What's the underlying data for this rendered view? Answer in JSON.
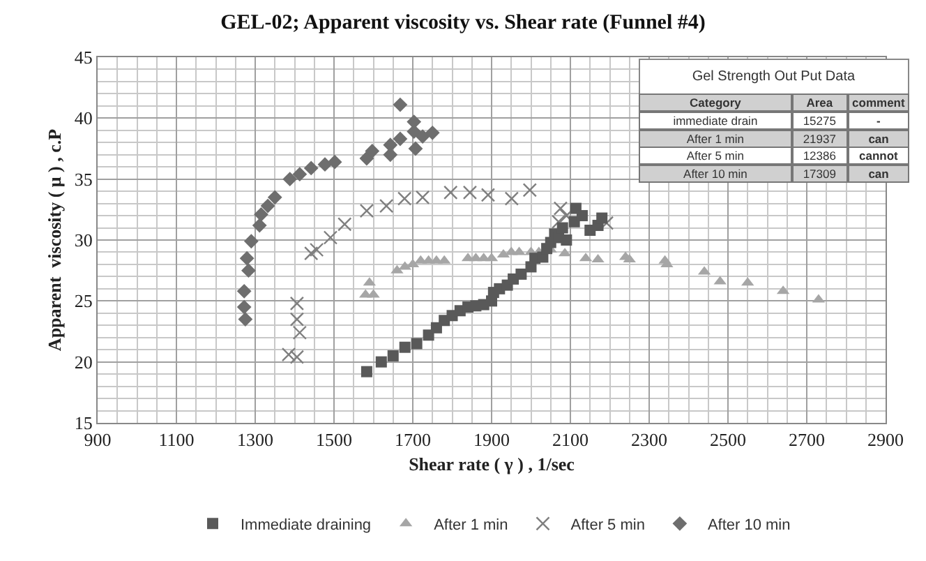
{
  "chart_data": {
    "type": "scatter",
    "title": "GEL-02; Apparent viscosity vs. Shear rate (Funnel #4)",
    "xlabel": "Shear rate ( γ ) , 1/sec",
    "ylabel": "Apparent  viscosity ( μ ) , c.P",
    "xlim": [
      900,
      2900
    ],
    "xticks": [
      900,
      1100,
      1300,
      1500,
      1700,
      1900,
      2100,
      2300,
      2500,
      2700,
      2900
    ],
    "ylim": [
      15,
      45
    ],
    "yticks": [
      15,
      20,
      25,
      30,
      35,
      40,
      45
    ],
    "grid": true,
    "legend": "bottom",
    "annotations": [
      "Gel Strength Out Put Data",
      "Category",
      "Area",
      "comment",
      "immediate drain",
      "15275",
      "-",
      "After 1 min",
      "21937",
      "can",
      "After 5 min",
      "12386",
      "cannot",
      "After 10 min",
      "17309",
      "can"
    ],
    "series": [
      {
        "name": "Immediate draining",
        "color": "#595959",
        "marker": "square",
        "x": [
          1583,
          1620,
          1650,
          1680,
          1710,
          1740,
          1760,
          1780,
          1800,
          1820,
          1840,
          1860,
          1880,
          1900,
          1905,
          1920,
          1940,
          1955,
          1975,
          2000,
          2010,
          2030,
          2040,
          2050,
          2060,
          2070,
          2080,
          2090,
          2110,
          2114,
          2130,
          2150,
          2170,
          2180
        ],
        "values": [
          19.2,
          20,
          20.5,
          21.2,
          21.5,
          22.2,
          22.8,
          23.4,
          23.8,
          24.2,
          24.5,
          24.6,
          24.7,
          25,
          25.7,
          26,
          26.3,
          26.8,
          27.2,
          27.8,
          28.5,
          28.6,
          29.3,
          29.8,
          30.5,
          30.2,
          31,
          30,
          31.5,
          32.6,
          32,
          30.8,
          31.2,
          31.8
        ]
      },
      {
        "name": "After 1 min",
        "color": "#a6a6a6",
        "marker": "triangle",
        "x": [
          1580,
          1590,
          1600,
          1660,
          1680,
          1700,
          1720,
          1740,
          1760,
          1780,
          1840,
          1860,
          1880,
          1900,
          1930,
          1950,
          1970,
          2000,
          2020,
          2050,
          2086,
          2139,
          2170,
          2240,
          2250,
          2340,
          2345,
          2440,
          2480,
          2550,
          2640,
          2730
        ],
        "values": [
          25.5,
          26.5,
          25.5,
          27.5,
          27.8,
          28,
          28.3,
          28.3,
          28.3,
          28.3,
          28.5,
          28.5,
          28.5,
          28.5,
          28.8,
          29,
          29,
          29,
          29,
          29.2,
          28.9,
          28.5,
          28.4,
          28.6,
          28.4,
          28.3,
          28,
          27.4,
          26.6,
          26.5,
          25.8,
          25.1
        ]
      },
      {
        "name": "After 5 min",
        "color": "#7f7f7f",
        "marker": "cross",
        "x": [
          1385,
          1406,
          1406,
          1406,
          1413,
          1442,
          1456,
          1491,
          1527,
          1583,
          1633,
          1679,
          1725,
          1796,
          1845,
          1891,
          1951,
          1997,
          2070,
          2075,
          2090,
          2192
        ],
        "values": [
          20.6,
          20.4,
          23.5,
          24.8,
          22.4,
          28.9,
          29.2,
          30.2,
          31.3,
          32.4,
          32.8,
          33.4,
          33.5,
          33.9,
          33.9,
          33.7,
          33.4,
          34.1,
          31.5,
          32.6,
          32,
          31.4
        ]
      },
      {
        "name": "After 10 min",
        "color": "#6e6e6e",
        "marker": "diamond",
        "x": [
          1275,
          1272,
          1272,
          1283,
          1279,
          1290,
          1311,
          1315,
          1332,
          1350,
          1388,
          1413,
          1442,
          1477,
          1502,
          1583,
          1597,
          1643,
          1643,
          1668,
          1668,
          1703,
          1703,
          1707,
          1725,
          1750
        ],
        "values": [
          23.5,
          24.5,
          25.8,
          27.5,
          28.5,
          29.9,
          31.2,
          32.1,
          32.8,
          33.5,
          35,
          35.4,
          35.9,
          36.2,
          36.4,
          36.7,
          37.3,
          37,
          37.8,
          38.3,
          41.1,
          39.7,
          38.9,
          37.5,
          38.5,
          38.8
        ]
      }
    ]
  }
}
